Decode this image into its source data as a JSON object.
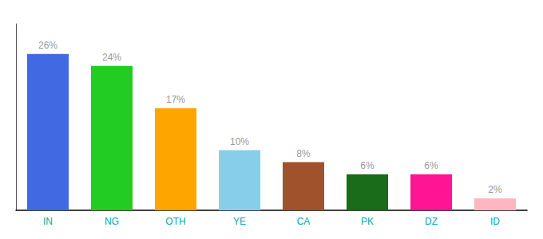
{
  "chart_data": {
    "type": "bar",
    "categories": [
      "IN",
      "NG",
      "OTH",
      "YE",
      "CA",
      "PK",
      "DZ",
      "ID"
    ],
    "values": [
      26,
      24,
      17,
      10,
      8,
      6,
      6,
      2
    ],
    "value_labels": [
      "26%",
      "24%",
      "17%",
      "10%",
      "8%",
      "6%",
      "6%",
      "2%"
    ],
    "colors": [
      "#4169E1",
      "#22CC22",
      "#FFA500",
      "#87CEEB",
      "#A0522D",
      "#1A6B1A",
      "#FF1493",
      "#FFB6C1"
    ],
    "ylim": [
      0,
      31
    ],
    "grid": false,
    "data_labels": true,
    "tick_labels": "x"
  }
}
